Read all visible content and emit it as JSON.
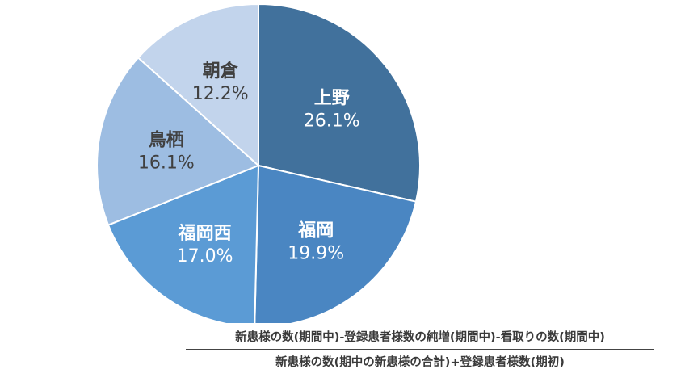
{
  "chart_data": {
    "type": "pie",
    "start_angle_deg": 0,
    "direction": "clockwise",
    "slices": [
      {
        "label": "上野",
        "value": 26.1,
        "value_label": "26.1%",
        "color": "#41719c",
        "label_color": "#ffffff"
      },
      {
        "label": "福岡",
        "value": 19.9,
        "value_label": "19.9%",
        "color": "#4a86c2",
        "label_color": "#ffffff"
      },
      {
        "label": "福岡西",
        "value": 17.0,
        "value_label": "17.0%",
        "color": "#5b9bd5",
        "label_color": "#ffffff"
      },
      {
        "label": "鳥栖",
        "value": 16.1,
        "value_label": "16.1%",
        "color": "#9dbde2",
        "label_color": "#404040"
      },
      {
        "label": "朝倉",
        "value": 12.2,
        "value_label": "12.2%",
        "color": "#c2d4ec",
        "label_color": "#404040"
      }
    ]
  },
  "formula": {
    "numerator": "新患様の数(期間中)-登録患者様数の純増(期間中)-看取りの数(期間中)",
    "denominator": "新患様の数(期中の新患様の合計)+登録患者様数(期初)"
  }
}
